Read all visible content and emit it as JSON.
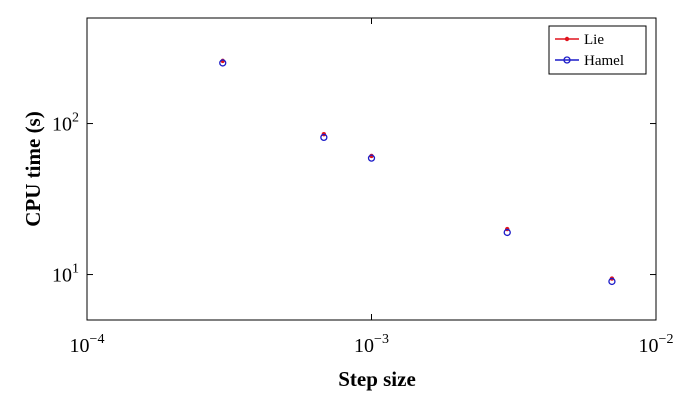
{
  "chart_data": {
    "type": "line",
    "x_label": "Step size",
    "y_label": "CPU time (s)",
    "x": [
      0.0003,
      0.00068,
      0.001,
      0.003,
      0.007
    ],
    "series": [
      {
        "name": "Lie",
        "color": "#e0141e",
        "marker": "dot",
        "values": [
          260,
          85,
          61,
          20,
          9.4
        ]
      },
      {
        "name": "Hamel",
        "color": "#1c1cc8",
        "marker": "circle",
        "values": [
          252,
          81,
          59,
          19,
          9.0
        ]
      }
    ],
    "xscale": "log",
    "yscale": "log",
    "xlim": [
      0.0001,
      0.01
    ],
    "ylim": [
      5,
      500
    ],
    "xticks": [
      {
        "value": 0.0001,
        "label": "10^−4"
      },
      {
        "value": 0.001,
        "label": "10^−3"
      },
      {
        "value": 0.01,
        "label": "10^−2"
      }
    ],
    "yticks": [
      {
        "value": 10,
        "label": "10^1"
      },
      {
        "value": 100,
        "label": "10^2"
      }
    ],
    "grid": false,
    "legend": "upper right"
  }
}
